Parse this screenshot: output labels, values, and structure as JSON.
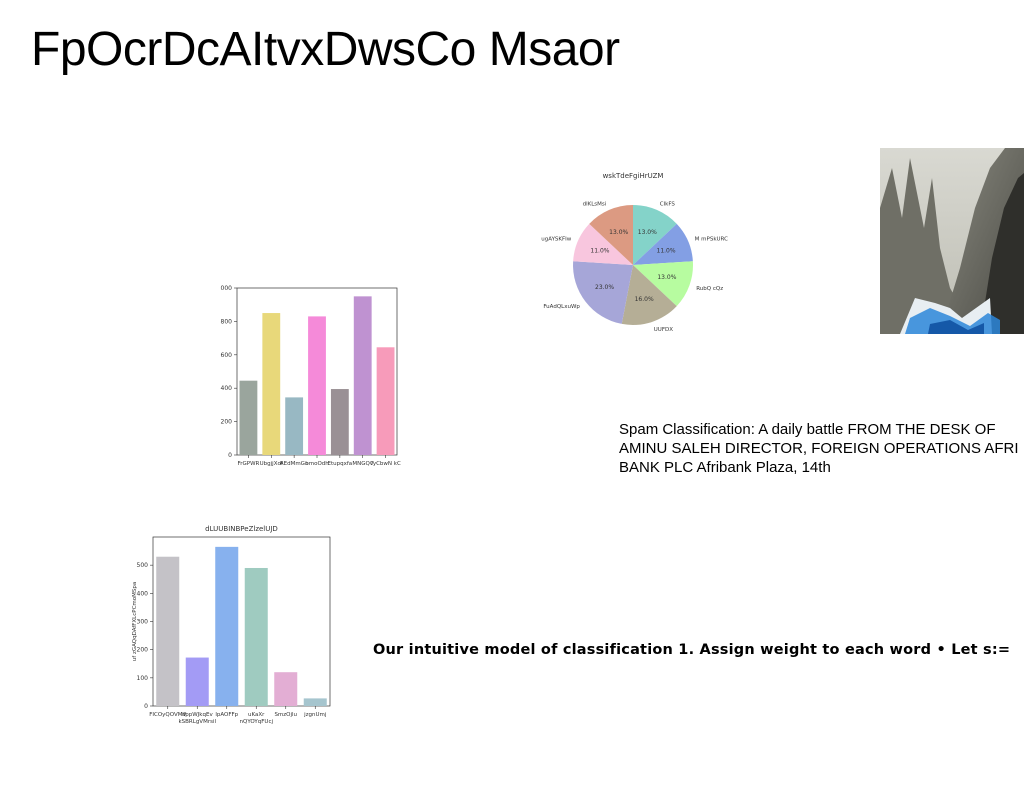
{
  "slide": {
    "title": "FpOcrDcAItvxDwsCo Msaor",
    "paragraph1": "Spam Classification: A daily battle FROM THE DESK OF AMINU SALEH DIRECTOR, FOREIGN OPERATIONS AFRI BANK PLC Afribank Plaza, 14th",
    "paragraph2": "Our intuitive model of classification 1. Assign weight to each word • Let s:="
  },
  "chart_data": [
    {
      "type": "bar",
      "title": "",
      "xlabel": "",
      "ylabel": "",
      "categories": [
        "FrGPWR",
        "UbgjjXdf",
        "AEdMmGn",
        "bmoOdh",
        "Etupqxfa",
        "MNGQv",
        "TyCbwN kC"
      ],
      "values": [
        445,
        850,
        345,
        830,
        395,
        950,
        645
      ],
      "colors": [
        "#9aa59d",
        "#e8d87a",
        "#98b8c3",
        "#f58ad9",
        "#9a9095",
        "#bf92d1",
        "#f79bba"
      ],
      "ylim": [
        0,
        1000
      ],
      "yticks": [
        0,
        200,
        400,
        600,
        800,
        1000
      ],
      "grid": false
    },
    {
      "type": "bar",
      "title": "dLUUBINBPeZlzelUJD",
      "xlabel": "",
      "ylabel": "uf zGAQqDAfFXLcPCmoMSpa",
      "categories": [
        "FICOyQOVMV",
        "kSBRLgVMrsI",
        "lpAOFFp",
        "nQYOYqFUcj",
        "SmzOjlu",
        "jzgnUmj"
      ],
      "tick_labels_row1": [
        "FICOyQOVMV",
        "dppWJkqEv",
        "lpAOFFp",
        "uKaXr",
        "SmzOjlu",
        "jzgnUmj"
      ],
      "tick_labels_row2": [
        "",
        "kSBRLgVMrsil",
        "",
        "nQYOYqFUcj",
        "",
        ""
      ],
      "values": [
        530,
        172,
        565,
        490,
        120,
        27
      ],
      "colors": [
        "#c4c2c7",
        "#a39bf5",
        "#87b1ee",
        "#9fcbc0",
        "#e3aed4",
        "#a6c5ce"
      ],
      "ylim": [
        0,
        600
      ],
      "yticks": [
        0,
        100,
        200,
        300,
        400,
        500
      ],
      "grid": false
    },
    {
      "type": "pie",
      "title": "wskTdeFgiHrUZM",
      "labels": [
        "CIkFS",
        "M mPSkURC",
        "RubQ cQz",
        "UUFDX",
        "FuAdQLxuWp",
        "ugAYSKFIw",
        "dlKLsMsi"
      ],
      "values": [
        13.0,
        11.0,
        13.0,
        16.0,
        23.0,
        11.0,
        13.0
      ],
      "percent_labels": [
        "13.0%",
        "11.0%",
        "13.0%",
        "16.0%",
        "23.0%",
        "11.0%",
        "13.0%"
      ],
      "colors": [
        "#84d3c9",
        "#839fe4",
        "#b7fca0",
        "#b5ae96",
        "#a6a6d8",
        "#f8c6de",
        "#dc9a82"
      ],
      "legend": "none"
    }
  ],
  "image": {
    "icon": "mountain-photo"
  }
}
